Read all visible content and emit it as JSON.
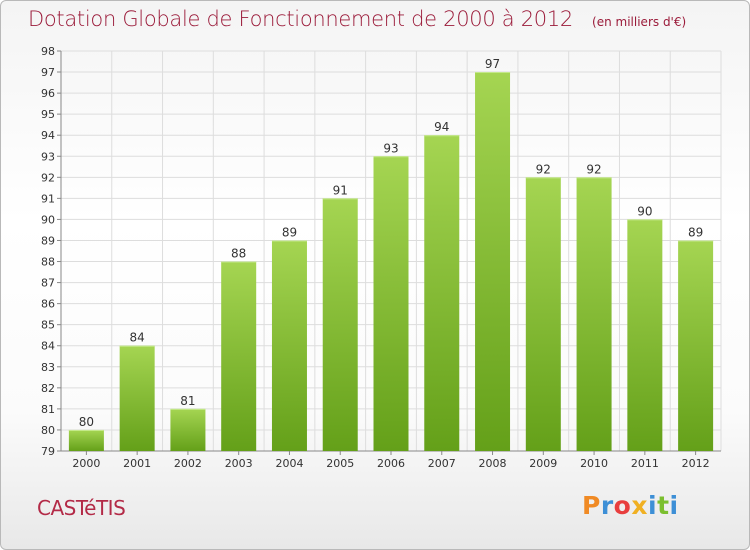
{
  "header": {
    "title": "Dotation Globale de Fonctionnement de 2000 à 2012",
    "unit": "(en milliers d'€)"
  },
  "footer": {
    "commune": "CASTéTIS",
    "brand": "Proxiti"
  },
  "colors": {
    "title": "#9b1b3a",
    "bar_light": "#a5d552",
    "bar_dark": "#64a019",
    "brand": [
      "#f08a24",
      "#3d8fd6",
      "#e83e3e",
      "#f0b022",
      "#3d8fd6",
      "#7bbf2f",
      "#3d8fd6"
    ]
  },
  "chart_data": {
    "type": "bar",
    "categories": [
      "2000",
      "2001",
      "2002",
      "2003",
      "2004",
      "2005",
      "2006",
      "2007",
      "2008",
      "2009",
      "2010",
      "2011",
      "2012"
    ],
    "values": [
      80,
      84,
      81,
      88,
      89,
      91,
      93,
      94,
      97,
      92,
      92,
      90,
      89
    ],
    "title": "Dotation Globale de Fonctionnement de 2000 à 2012",
    "ylim": [
      79,
      98
    ],
    "yticks": [
      79,
      80,
      81,
      82,
      83,
      84,
      85,
      86,
      87,
      88,
      89,
      90,
      91,
      92,
      93,
      94,
      95,
      96,
      97,
      98
    ],
    "grid": true,
    "data_labels": true
  }
}
